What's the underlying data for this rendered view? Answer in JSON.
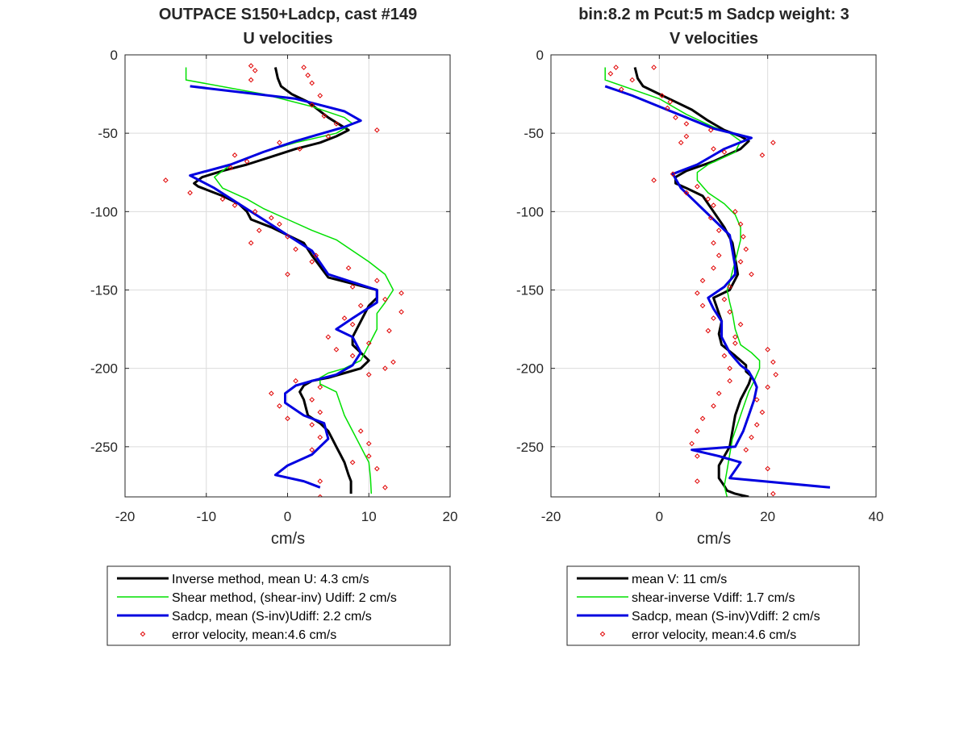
{
  "chart_data": [
    {
      "type": "line",
      "title": [
        "OUTPACE S150+Ladcp, cast #149",
        "U velocities"
      ],
      "xlabel": "cm/s",
      "ylabel": "",
      "xlim": [
        -20,
        20
      ],
      "ylim": [
        -282,
        0
      ],
      "xticks": [
        -20,
        -10,
        0,
        10,
        20
      ],
      "yticks": [
        0,
        -50,
        -100,
        -150,
        -200,
        -250
      ],
      "grid": true,
      "legend_position": "below",
      "series": [
        {
          "name": "Inverse method, mean U:  4.3 cm/s",
          "color": "#000000",
          "style": "thick-line",
          "x": [
            -1.5,
            -1.2,
            -0.8,
            0.5,
            2.5,
            5,
            7.5,
            6,
            4,
            1,
            -2,
            -5,
            -8,
            -10.5,
            -11.5,
            -11,
            -10,
            -8,
            -6,
            -5,
            -4.5,
            -2,
            0,
            2,
            3,
            4,
            5,
            8,
            11,
            11,
            10,
            9,
            8,
            8,
            9,
            10,
            9,
            7,
            5,
            3,
            2,
            1.5,
            2,
            2.5,
            4,
            5,
            5.5,
            6,
            6.5,
            7,
            7.5,
            7.8,
            7.8
          ],
          "y": [
            -8,
            -15,
            -20,
            -25,
            -30,
            -40,
            -48,
            -52,
            -56,
            -60,
            -65,
            -70,
            -74,
            -78,
            -82,
            -84,
            -86,
            -90,
            -95,
            -100,
            -105,
            -110,
            -115,
            -120,
            -128,
            -135,
            -142,
            -146,
            -150,
            -155,
            -160,
            -170,
            -180,
            -185,
            -190,
            -195,
            -200,
            -203,
            -206,
            -208,
            -211,
            -215,
            -220,
            -230,
            -235,
            -240,
            -245,
            -250,
            -255,
            -260,
            -268,
            -272,
            -280
          ]
        },
        {
          "name": "Shear method, (shear-inv)  Udiff:  2 cm/s",
          "color": "#00e000",
          "style": "thin-line",
          "x": [
            -12.5,
            -12.5,
            -3,
            3,
            7,
            8,
            6,
            1,
            -3,
            -7,
            -9,
            -8,
            -5,
            -3,
            0,
            3,
            6,
            8,
            10,
            12,
            13,
            12,
            11,
            11,
            10,
            9,
            7,
            5,
            4,
            4,
            6,
            7,
            8,
            9,
            9.5,
            10,
            10.2,
            10.3
          ],
          "y": [
            -8,
            -16,
            -25,
            -33,
            -40,
            -44,
            -50,
            -56,
            -62,
            -70,
            -78,
            -85,
            -92,
            -98,
            -105,
            -112,
            -118,
            -125,
            -132,
            -140,
            -150,
            -158,
            -165,
            -175,
            -185,
            -195,
            -200,
            -203,
            -206,
            -210,
            -215,
            -230,
            -240,
            -250,
            -255,
            -260,
            -270,
            -280
          ]
        },
        {
          "name": "Sadcp, mean (S-inv)Udiff: 2.2 cm/s",
          "color": "#0000e0",
          "style": "thick-line",
          "x": [
            -12,
            1,
            7,
            9,
            7,
            1,
            -3,
            -7,
            -12,
            -9,
            -6,
            -3,
            0,
            3,
            5,
            11,
            11,
            8,
            6,
            8,
            9,
            8,
            6,
            3,
            1,
            -0.3,
            -0.3,
            2,
            4.5,
            5,
            3,
            0,
            -1.5,
            2,
            4
          ],
          "y": [
            -20,
            -28,
            -36,
            -42,
            -46,
            -55,
            -62,
            -70,
            -77,
            -85,
            -95,
            -105,
            -115,
            -125,
            -140,
            -150,
            -158,
            -168,
            -175,
            -180,
            -190,
            -198,
            -204,
            -208,
            -211,
            -216,
            -222,
            -230,
            -235,
            -245,
            -255,
            -262,
            -268,
            -272,
            -276
          ]
        },
        {
          "name": "error velocity, mean:4.6 cm/s",
          "color": "#e00000",
          "style": "diamond-markers",
          "x": [
            -4.5,
            2,
            -4,
            2.5,
            -4.5,
            3,
            4,
            3,
            4.5,
            6,
            11,
            5,
            -1,
            1.5,
            -6.5,
            -5,
            -7,
            -15,
            -12,
            -8,
            -6.5,
            -4,
            -2,
            -1,
            -3.5,
            0,
            -4.5,
            1,
            3.5,
            3,
            7.5,
            0,
            11,
            8,
            14,
            12,
            9,
            14,
            7,
            8,
            12.5,
            5,
            10,
            6,
            8,
            13,
            12,
            10,
            1,
            4,
            -2,
            3,
            -1,
            4,
            0,
            3,
            9,
            4,
            10,
            3,
            10,
            8,
            11,
            4,
            12,
            4
          ],
          "y": [
            -7,
            -8,
            -10,
            -13,
            -16,
            -18,
            -26,
            -32,
            -39,
            -44,
            -48,
            -52,
            -56,
            -60,
            -64,
            -68,
            -72,
            -80,
            -88,
            -92,
            -96,
            -100,
            -104,
            -108,
            -112,
            -116,
            -120,
            -124,
            -128,
            -132,
            -136,
            -140,
            -144,
            -148,
            -152,
            -156,
            -160,
            -164,
            -168,
            -172,
            -176,
            -180,
            -184,
            -188,
            -192,
            -196,
            -200,
            -204,
            -208,
            -212,
            -216,
            -220,
            -224,
            -228,
            -232,
            -236,
            -240,
            -244,
            -248,
            -252,
            -256,
            -260,
            -264,
            -272,
            -276,
            -282
          ]
        }
      ]
    },
    {
      "type": "line",
      "title": [
        "bin:8.2 m  Pcut:5 m  Sadcp weight: 3",
        "V velocities"
      ],
      "xlabel": "cm/s",
      "ylabel": "",
      "xlim": [
        -20,
        40
      ],
      "ylim": [
        -282,
        0
      ],
      "xticks": [
        -20,
        0,
        20,
        40
      ],
      "yticks": [
        0,
        -50,
        -100,
        -150,
        -200,
        -250
      ],
      "grid": true,
      "legend_position": "below",
      "series": [
        {
          "name": "mean V:  11 cm/s",
          "color": "#000000",
          "style": "thick-line",
          "x": [
            -4.5,
            -4,
            -3,
            0,
            3,
            6,
            9,
            12,
            15,
            16.5,
            15,
            10,
            5,
            3,
            3,
            5,
            8,
            10,
            12,
            13.5,
            14,
            14.5,
            13,
            10,
            10.5,
            11,
            11.5,
            11,
            11.5,
            14,
            16,
            16,
            17,
            16.5,
            15,
            14,
            13.5,
            13,
            12,
            11,
            11,
            12,
            12.5,
            14,
            16.5
          ],
          "y": [
            -8,
            -15,
            -20,
            -25,
            -30,
            -35,
            -42,
            -48,
            -52,
            -55,
            -60,
            -68,
            -74,
            -78,
            -82,
            -85,
            -90,
            -100,
            -110,
            -120,
            -130,
            -140,
            -150,
            -155,
            -160,
            -165,
            -170,
            -178,
            -185,
            -192,
            -198,
            -202,
            -205,
            -210,
            -220,
            -230,
            -240,
            -250,
            -256,
            -262,
            -270,
            -275,
            -278,
            -280,
            -282
          ]
        },
        {
          "name": "shear-inverse Vdiff:  1.7 cm/s",
          "color": "#00e000",
          "style": "thin-line",
          "x": [
            -10,
            -10,
            0,
            5,
            10,
            13,
            15,
            14,
            9,
            7,
            7,
            9,
            12,
            14,
            15,
            15,
            14.5,
            14,
            13.5,
            13,
            12.5,
            13,
            13.5,
            14,
            15,
            17,
            18.5,
            18.5,
            17.5,
            16.5,
            15.5,
            14.5,
            13.5,
            13,
            12.5,
            12,
            12.5
          ],
          "y": [
            -8,
            -16,
            -28,
            -38,
            -46,
            -50,
            -55,
            -62,
            -70,
            -75,
            -80,
            -88,
            -95,
            -102,
            -110,
            -118,
            -125,
            -132,
            -138,
            -145,
            -150,
            -158,
            -165,
            -175,
            -185,
            -190,
            -195,
            -200,
            -208,
            -215,
            -225,
            -235,
            -245,
            -255,
            -265,
            -275,
            -282
          ]
        },
        {
          "name": "Sadcp, mean (S-inv)Vdiff: 2 cm/s",
          "color": "#0000e0",
          "style": "thick-line",
          "x": [
            -10,
            -5,
            0,
            5,
            10,
            17,
            12,
            7,
            2.5,
            4,
            7,
            10,
            13,
            13.5,
            14,
            14,
            12,
            9,
            10,
            11.5,
            11.5,
            13,
            15,
            16.5,
            17.5,
            18,
            17.5,
            16.5,
            15.5,
            14,
            6,
            11,
            15,
            13,
            31.5
          ],
          "y": [
            -20,
            -26,
            -33,
            -40,
            -47,
            -53,
            -60,
            -70,
            -76,
            -85,
            -95,
            -105,
            -115,
            -125,
            -135,
            -140,
            -148,
            -155,
            -162,
            -170,
            -180,
            -190,
            -198,
            -202,
            -208,
            -212,
            -220,
            -230,
            -240,
            -250,
            -252,
            -256,
            -260,
            -270,
            -276
          ]
        },
        {
          "name": "error velocity, mean:4.6 cm/s",
          "color": "#e00000",
          "style": "diamond-markers",
          "x": [
            -8,
            -1,
            -9,
            -5,
            -7,
            0.5,
            2,
            1.5,
            3,
            5,
            9.5,
            5,
            4,
            21,
            10,
            19,
            12,
            2.5,
            -1,
            7,
            5,
            9,
            10,
            14,
            9.5,
            15,
            11,
            15.5,
            10,
            16,
            11,
            15,
            10,
            17,
            8,
            13,
            7,
            12,
            8,
            13,
            10,
            15,
            9,
            14,
            14,
            20,
            12,
            21,
            13,
            21.5,
            13,
            20,
            11,
            18,
            10,
            19,
            8,
            18,
            7,
            17,
            6,
            16,
            7,
            20,
            7,
            21
          ],
          "y": [
            -8,
            -8,
            -12,
            -16,
            -22,
            -26,
            -30,
            -34,
            -40,
            -44,
            -48,
            -52,
            -56,
            -56,
            -60,
            -64,
            -62,
            -76,
            -80,
            -84,
            -88,
            -92,
            -96,
            -100,
            -104,
            -108,
            -112,
            -116,
            -120,
            -124,
            -128,
            -132,
            -136,
            -140,
            -144,
            -148,
            -152,
            -156,
            -160,
            -164,
            -168,
            -172,
            -176,
            -180,
            -184,
            -188,
            -192,
            -196,
            -200,
            -204,
            -208,
            -212,
            -216,
            -220,
            -224,
            -228,
            -232,
            -236,
            -240,
            -244,
            -248,
            -252,
            -256,
            -264,
            -272,
            -280
          ]
        }
      ]
    }
  ]
}
